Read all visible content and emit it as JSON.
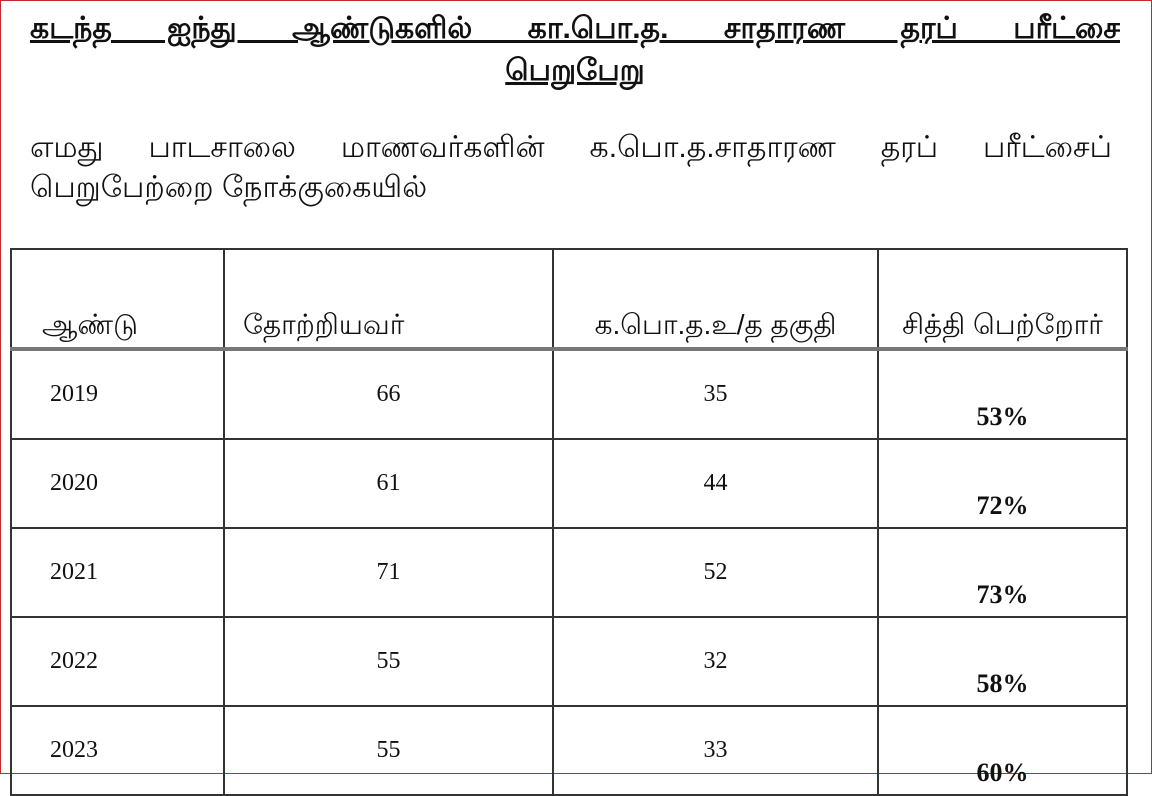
{
  "title_line1": "கடந்த ஐந்து ஆண்டுகளில் கா.பொ.த. சாதாரண தரப் பரீட்சை",
  "title_line2": "பெறுபேறு",
  "paragraph": "எமது பாடசாலை மாணவர்களின் க.பொ.த.சாதாரண தரப் பரீட்சைப் பெறுபேற்றை நோக்குகையில்",
  "table": {
    "headers": [
      "ஆண்டு",
      "தோற்றியவர்",
      "க.பொ.த.உ/த தகுதி",
      "சித்தி பெற்றோர்"
    ],
    "rows": [
      [
        "2019",
        "66",
        "35",
        "53%"
      ],
      [
        "2020",
        "61",
        "44",
        "72%"
      ],
      [
        "2021",
        "71",
        "52",
        "73%"
      ],
      [
        "2022",
        "55",
        "32",
        "58%"
      ],
      [
        "2023",
        "55",
        "33",
        "60%"
      ]
    ]
  },
  "colors": {
    "frame": "#c0282c"
  }
}
